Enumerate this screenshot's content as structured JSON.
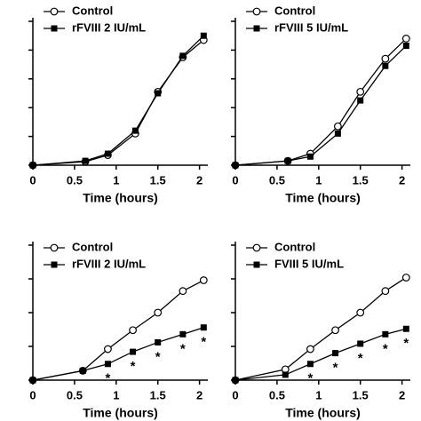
{
  "chart_data": [
    {
      "type": "line",
      "x": [
        0,
        0.63,
        0.9,
        1.23,
        1.5,
        1.8,
        2.05
      ],
      "xlabel": "Time (hours)",
      "xlim": [
        0,
        2.1
      ],
      "xticks": [
        0,
        0.5,
        1,
        1.5,
        2
      ],
      "ylim": [
        0,
        100
      ],
      "yticks": [
        0,
        20,
        40,
        60,
        80,
        100
      ],
      "series": [
        {
          "name": "Control",
          "color": "#000000",
          "marker": "open-circle",
          "values": [
            0,
            2.5,
            7,
            22,
            51,
            75,
            87
          ]
        },
        {
          "name": "rFVIII 2 IU/mL",
          "color": "#000000",
          "marker": "filled-square",
          "values": [
            0,
            3,
            8,
            24,
            50,
            76,
            90
          ]
        }
      ]
    },
    {
      "type": "line",
      "x": [
        0,
        0.63,
        0.9,
        1.23,
        1.5,
        1.8,
        2.05
      ],
      "xlabel": "Time (hours)",
      "xlim": [
        0,
        2.1
      ],
      "xticks": [
        0,
        0.5,
        1,
        1.5,
        2
      ],
      "ylim": [
        0,
        100
      ],
      "yticks": [
        0,
        20,
        40,
        60,
        80,
        100
      ],
      "series": [
        {
          "name": "Control",
          "color": "#000000",
          "marker": "open-circle",
          "values": [
            0,
            3,
            8,
            27,
            51,
            74,
            88
          ]
        },
        {
          "name": "rFVIII 5 IU/mL",
          "color": "#000000",
          "marker": "filled-square",
          "values": [
            0,
            3,
            6,
            22,
            45,
            69,
            83
          ]
        }
      ]
    },
    {
      "type": "line",
      "x": [
        0,
        0.6,
        0.9,
        1.2,
        1.5,
        1.8,
        2.05
      ],
      "xlabel": "Time (hours)",
      "xlim": [
        0,
        2.1
      ],
      "xticks": [
        0,
        0.5,
        1,
        1.5,
        2
      ],
      "ylim": [
        0,
        100
      ],
      "yticks": [
        0,
        25,
        50,
        75,
        100
      ],
      "series": [
        {
          "name": "Control",
          "color": "#000000",
          "marker": "open-circle",
          "values": [
            0,
            7,
            23,
            37,
            50,
            66,
            74
          ]
        },
        {
          "name": "rFVIII 2 IU/mL",
          "color": "#000000",
          "marker": "filled-square",
          "values": [
            0,
            7,
            12,
            21,
            28,
            34,
            39
          ]
        }
      ],
      "annotations": [
        null,
        null,
        "*",
        "*",
        "*",
        "*",
        "*"
      ]
    },
    {
      "type": "line",
      "x": [
        0,
        0.6,
        0.9,
        1.2,
        1.5,
        1.8,
        2.05
      ],
      "xlabel": "Time (hours)",
      "xlim": [
        0,
        2.1
      ],
      "xticks": [
        0,
        0.5,
        1,
        1.5,
        2
      ],
      "ylim": [
        0,
        100
      ],
      "yticks": [
        0,
        25,
        50,
        75,
        100
      ],
      "series": [
        {
          "name": "Control",
          "color": "#000000",
          "marker": "open-circle",
          "values": [
            0,
            8,
            23,
            37,
            50,
            66,
            76
          ]
        },
        {
          "name": "FVIII 5 IU/mL",
          "color": "#000000",
          "marker": "filled-square",
          "values": [
            0,
            4,
            12,
            20,
            27,
            34,
            38
          ]
        }
      ],
      "annotations": [
        null,
        null,
        "*",
        "*",
        "*",
        "*",
        "*"
      ]
    }
  ]
}
